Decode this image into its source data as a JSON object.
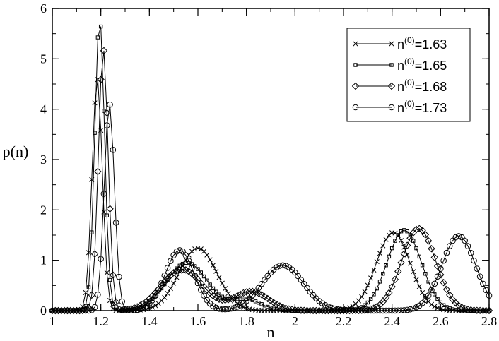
{
  "chart_data": {
    "type": "line",
    "title": "",
    "xlabel": "n",
    "ylabel": "p(n)",
    "xlim": [
      1,
      2.8
    ],
    "ylim": [
      0,
      6
    ],
    "xticks": [
      1,
      1.2,
      1.4,
      1.6,
      1.8,
      2,
      2.2,
      2.4,
      2.6,
      2.8
    ],
    "xtick_labels": [
      "1",
      "1.2",
      "1.4",
      "1.6",
      "1.8",
      "2",
      "2.2",
      "2.4",
      "2.6",
      "2.8"
    ],
    "yticks": [
      0,
      1,
      2,
      3,
      4,
      5,
      6
    ],
    "ytick_labels": [
      "0",
      "1",
      "2",
      "3",
      "4",
      "5",
      "6"
    ],
    "grid": false,
    "legend_position": "top-right",
    "series": [
      {
        "label_base": "n",
        "label_sup": "(0)",
        "label_value": "=1.63",
        "marker": "x",
        "peaks": [
          {
            "center": 1.185,
            "height": 4.62,
            "sigma": 0.021
          },
          {
            "center": 1.6,
            "height": 1.24,
            "sigma": 0.078
          },
          {
            "center": 2.405,
            "height": 1.55,
            "sigma": 0.07
          }
        ]
      },
      {
        "label_base": "n",
        "label_sup": "(0)",
        "label_value": "=1.65",
        "marker": "square",
        "peaks": [
          {
            "center": 1.195,
            "height": 5.82,
            "sigma": 0.02
          },
          {
            "center": 1.555,
            "height": 0.95,
            "sigma": 0.085
          },
          {
            "center": 1.8,
            "height": 0.22,
            "sigma": 0.06
          },
          {
            "center": 2.45,
            "height": 1.6,
            "sigma": 0.07
          }
        ]
      },
      {
        "label_base": "n",
        "label_sup": "(0)",
        "label_value": "=1.68",
        "marker": "diamond",
        "peaks": [
          {
            "center": 1.21,
            "height": 5.2,
            "sigma": 0.02
          },
          {
            "center": 1.535,
            "height": 0.82,
            "sigma": 0.085
          },
          {
            "center": 1.82,
            "height": 0.38,
            "sigma": 0.07
          },
          {
            "center": 2.51,
            "height": 1.63,
            "sigma": 0.07
          }
        ]
      },
      {
        "label_base": "n",
        "label_sup": "(0)",
        "label_value": "=1.73",
        "marker": "circle",
        "peaks": [
          {
            "center": 1.235,
            "height": 4.12,
            "sigma": 0.021
          },
          {
            "center": 1.525,
            "height": 1.2,
            "sigma": 0.06
          },
          {
            "center": 1.95,
            "height": 0.9,
            "sigma": 0.085
          },
          {
            "center": 2.675,
            "height": 1.48,
            "sigma": 0.07
          }
        ]
      }
    ]
  }
}
